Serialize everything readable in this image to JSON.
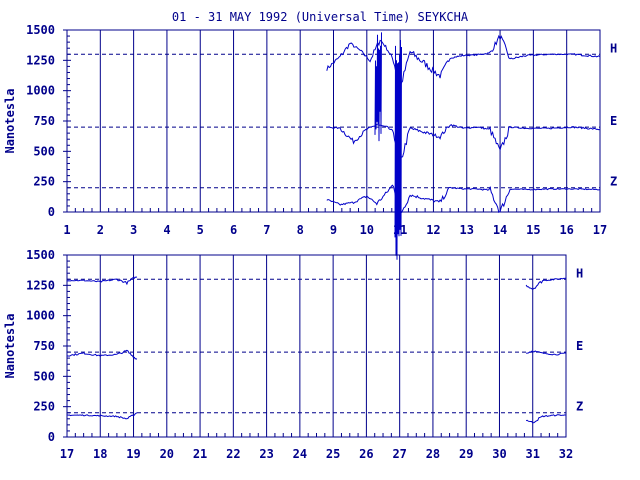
{
  "colors": {
    "ink": "#00008b",
    "trace": "#0000c8",
    "background": "#ffffff"
  },
  "chart_data": [
    {
      "type": "line",
      "title": "01 - 31 MAY 1992 (Universal Time) SEYKCHA",
      "ylabel": "Nanotesla",
      "xlabel": "",
      "xlim": [
        1,
        17
      ],
      "ylim": [
        0,
        1500
      ],
      "x_ticks": [
        1,
        2,
        3,
        4,
        5,
        6,
        7,
        8,
        9,
        10,
        11,
        12,
        13,
        14,
        15,
        16,
        17
      ],
      "y_ticks": [
        0,
        250,
        500,
        750,
        1000,
        1250,
        1500
      ],
      "grid": "vertical lines at each day",
      "baselines": [
        {
          "label": "H",
          "value": 1300
        },
        {
          "label": "E",
          "value": 700
        },
        {
          "label": "Z",
          "value": 200
        }
      ],
      "data_start": 8.8,
      "series": [
        {
          "name": "H",
          "x": [
            8.8,
            9.2,
            9.5,
            9.8,
            10.1,
            10.4,
            10.6,
            10.8,
            11.0,
            11.3,
            12.2,
            12.5,
            12.9,
            13.3,
            13.7,
            14.0,
            14.3,
            14.8,
            15.5,
            16.2,
            17.0
          ],
          "values": [
            1180,
            1280,
            1390,
            1330,
            1250,
            1420,
            1350,
            1250,
            1020,
            1320,
            1120,
            1270,
            1290,
            1295,
            1310,
            1450,
            1260,
            1290,
            1300,
            1300,
            1280
          ]
        },
        {
          "name": "E",
          "x": [
            8.8,
            9.2,
            9.6,
            10.0,
            10.3,
            10.6,
            10.8,
            11.0,
            11.3,
            12.2,
            12.5,
            12.9,
            13.3,
            13.7,
            14.0,
            14.3,
            14.8,
            15.5,
            16.2,
            17.0
          ],
          "values": [
            700,
            690,
            580,
            680,
            720,
            700,
            660,
            400,
            690,
            620,
            720,
            690,
            700,
            680,
            500,
            700,
            690,
            690,
            700,
            680
          ]
        },
        {
          "name": "Z",
          "x": [
            8.8,
            9.2,
            9.6,
            10.0,
            10.3,
            10.6,
            10.8,
            11.0,
            11.3,
            12.2,
            12.5,
            12.9,
            13.3,
            13.7,
            14.0,
            14.3,
            14.8,
            15.5,
            16.2,
            17.0
          ],
          "values": [
            100,
            60,
            80,
            130,
            70,
            160,
            230,
            -20,
            140,
            80,
            200,
            190,
            190,
            180,
            0,
            190,
            185,
            190,
            190,
            185
          ]
        }
      ],
      "spikes": [
        {
          "x": 10.35,
          "low": 580,
          "high": 1500
        },
        {
          "x": 10.95,
          "low": -400,
          "high": 1500
        }
      ]
    },
    {
      "type": "line",
      "title": "",
      "ylabel": "Nanotesla",
      "xlabel": "",
      "xlim": [
        17,
        32
      ],
      "ylim": [
        0,
        1500
      ],
      "x_ticks": [
        17,
        18,
        19,
        20,
        21,
        22,
        23,
        24,
        25,
        26,
        27,
        28,
        29,
        30,
        31,
        32
      ],
      "y_ticks": [
        0,
        250,
        500,
        750,
        1000,
        1250,
        1500
      ],
      "grid": "vertical lines at each day",
      "baselines": [
        {
          "label": "H",
          "value": 1300
        },
        {
          "label": "E",
          "value": 700
        },
        {
          "label": "Z",
          "value": 200
        }
      ],
      "series": [
        {
          "name": "H",
          "segments": [
            {
              "x": [
                17.0,
                17.5,
                18.0,
                18.5,
                18.8,
                19.0,
                19.1
              ],
              "values": [
                1290,
                1290,
                1280,
                1300,
                1270,
                1310,
                1320
              ]
            },
            {
              "x": [
                30.8,
                31.0,
                31.3,
                31.7,
                32.0
              ],
              "values": [
                1250,
                1220,
                1290,
                1300,
                1310
              ]
            }
          ]
        },
        {
          "name": "E",
          "segments": [
            {
              "x": [
                17.0,
                17.5,
                18.0,
                18.5,
                18.8,
                19.0,
                19.1
              ],
              "values": [
                670,
                690,
                670,
                680,
                710,
                660,
                640
              ]
            },
            {
              "x": [
                30.8,
                31.0,
                31.3,
                31.7,
                32.0
              ],
              "values": [
                690,
                710,
                690,
                680,
                690
              ]
            }
          ]
        },
        {
          "name": "Z",
          "segments": [
            {
              "x": [
                17.0,
                17.5,
                18.0,
                18.5,
                18.8,
                19.0,
                19.1
              ],
              "values": [
                180,
                180,
                175,
                170,
                150,
                180,
                200
              ]
            },
            {
              "x": [
                30.8,
                31.0,
                31.3,
                31.7,
                32.0
              ],
              "values": [
                140,
                120,
                170,
                180,
                180
              ]
            }
          ]
        }
      ]
    }
  ]
}
